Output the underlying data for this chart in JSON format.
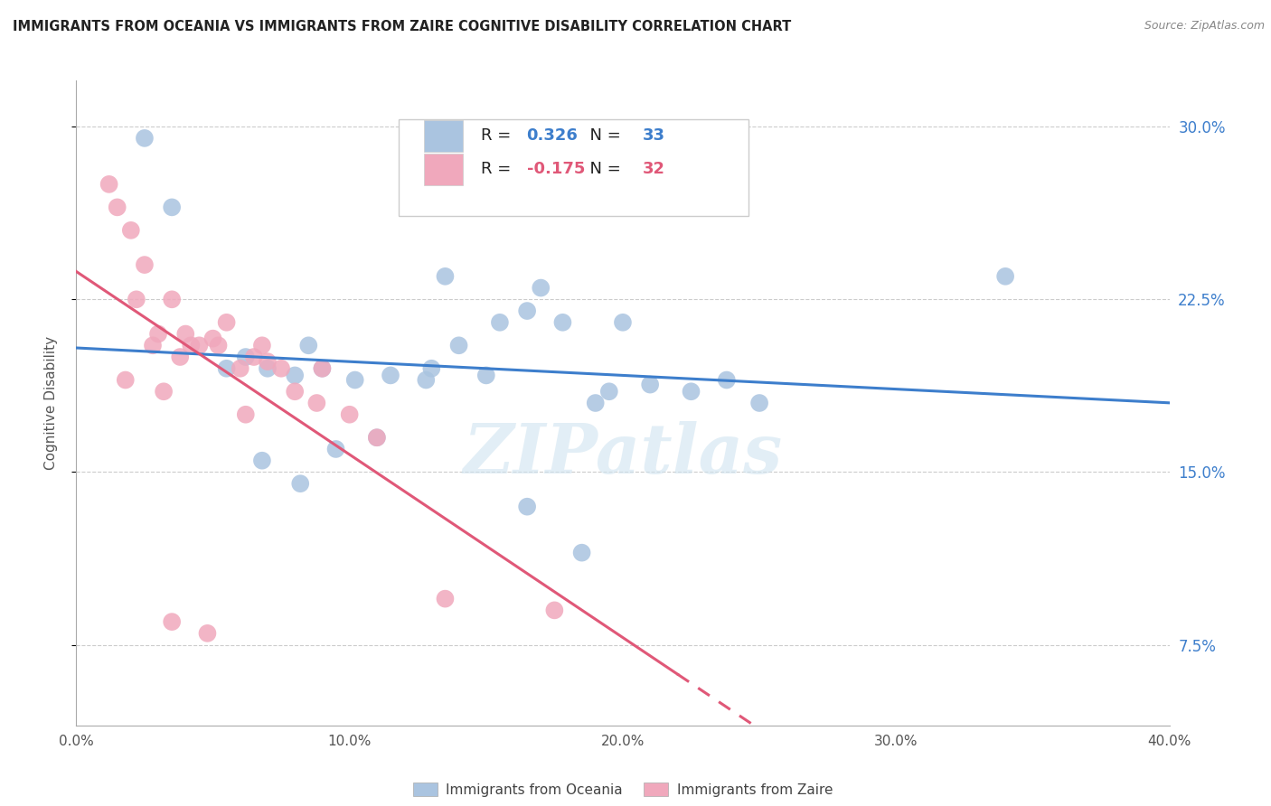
{
  "title": "IMMIGRANTS FROM OCEANIA VS IMMIGRANTS FROM ZAIRE COGNITIVE DISABILITY CORRELATION CHART",
  "source": "Source: ZipAtlas.com",
  "ylabel": "Cognitive Disability",
  "xlim": [
    0.0,
    40.0
  ],
  "ylim": [
    4.0,
    32.0
  ],
  "yticks": [
    7.5,
    15.0,
    22.5,
    30.0
  ],
  "xticks": [
    0.0,
    10.0,
    20.0,
    30.0,
    40.0
  ],
  "blue_color": "#aac4e0",
  "pink_color": "#f0a8bc",
  "blue_line_color": "#3d7ecc",
  "pink_line_color": "#e05878",
  "legend_R_blue": "0.326",
  "legend_N_blue": "33",
  "legend_R_pink": "-0.175",
  "legend_N_pink": "32",
  "blue_x": [
    2.5,
    3.5,
    8.5,
    13.5,
    20.0,
    5.5,
    6.2,
    7.0,
    8.0,
    9.0,
    10.2,
    11.5,
    12.8,
    14.0,
    15.5,
    16.5,
    17.8,
    19.5,
    21.0,
    22.5,
    23.8,
    9.5,
    11.0,
    13.0,
    15.0,
    17.0,
    19.0,
    6.8,
    8.2,
    25.0,
    34.0,
    16.5,
    18.5
  ],
  "blue_y": [
    29.5,
    26.5,
    20.5,
    23.5,
    21.5,
    19.5,
    20.0,
    19.5,
    19.2,
    19.5,
    19.0,
    19.2,
    19.0,
    20.5,
    21.5,
    22.0,
    21.5,
    18.5,
    18.8,
    18.5,
    19.0,
    16.0,
    16.5,
    19.5,
    19.2,
    23.0,
    18.0,
    15.5,
    14.5,
    18.0,
    23.5,
    13.5,
    11.5
  ],
  "pink_x": [
    1.2,
    1.5,
    2.0,
    2.5,
    3.0,
    3.5,
    4.0,
    4.5,
    5.0,
    5.5,
    6.0,
    6.5,
    7.0,
    7.5,
    8.0,
    9.0,
    10.0,
    11.0,
    3.8,
    5.2,
    6.8,
    2.8,
    2.2,
    4.2,
    3.2,
    8.8,
    1.8,
    13.5,
    17.5,
    3.5,
    4.8,
    6.2
  ],
  "pink_y": [
    27.5,
    26.5,
    25.5,
    24.0,
    21.0,
    22.5,
    21.0,
    20.5,
    20.8,
    21.5,
    19.5,
    20.0,
    19.8,
    19.5,
    18.5,
    19.5,
    17.5,
    16.5,
    20.0,
    20.5,
    20.5,
    20.5,
    22.5,
    20.5,
    18.5,
    18.0,
    19.0,
    9.5,
    9.0,
    8.5,
    8.0,
    17.5
  ],
  "watermark": "ZIPatlas",
  "background_color": "#ffffff",
  "grid_color": "#cccccc",
  "pink_solid_end": 22.0
}
